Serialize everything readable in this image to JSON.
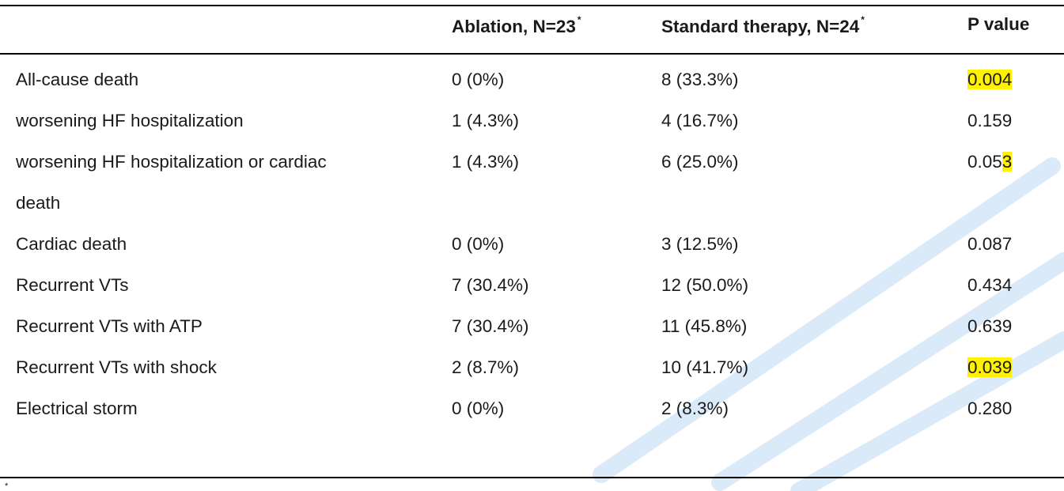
{
  "table": {
    "headers": [
      "",
      "Ablation, N=23",
      "Standard therapy, N=24",
      "P value"
    ],
    "header_marks": [
      "",
      "*",
      "*",
      ""
    ],
    "rows": [
      {
        "outcome": "All-cause death",
        "ablation": "0 (0%)",
        "standard": "8 (33.3%)",
        "p_pre": "",
        "p_hl": "0.004",
        "p_post": ""
      },
      {
        "outcome": "worsening HF hospitalization",
        "ablation": "1 (4.3%)",
        "standard": "4 (16.7%)",
        "p_pre": "0.159",
        "p_hl": "",
        "p_post": ""
      },
      {
        "outcome": "worsening HF hospitalization or cardiac",
        "outcome_cont": "death",
        "ablation": "1 (4.3%)",
        "standard": "6 (25.0%)",
        "p_pre": "0.05",
        "p_hl": "3",
        "p_post": ""
      },
      {
        "outcome": "Cardiac death",
        "ablation": "0 (0%)",
        "standard": "3 (12.5%)",
        "p_pre": "0.087",
        "p_hl": "",
        "p_post": ""
      },
      {
        "outcome": "Recurrent VTs",
        "ablation": "7 (30.4%)",
        "standard": "12 (50.0%)",
        "p_pre": "0.434",
        "p_hl": "",
        "p_post": ""
      },
      {
        "outcome": "Recurrent VTs with ATP",
        "ablation": "7 (30.4%)",
        "standard": "11 (45.8%)",
        "p_pre": "0.639",
        "p_hl": "",
        "p_post": ""
      },
      {
        "outcome": "Recurrent VTs with shock",
        "ablation": "2 (8.7%)",
        "standard": "10 (41.7%)",
        "p_pre": "",
        "p_hl": "0.039",
        "p_post": ""
      },
      {
        "outcome": "Electrical storm",
        "ablation": "0 (0%)",
        "standard": "2 (8.3%)",
        "p_pre": "0.280",
        "p_hl": "",
        "p_post": ""
      }
    ]
  },
  "footnote_mark": "*",
  "colors": {
    "highlight": "#fff200",
    "rule": "#000000",
    "watermark": "#cfe3f6"
  }
}
